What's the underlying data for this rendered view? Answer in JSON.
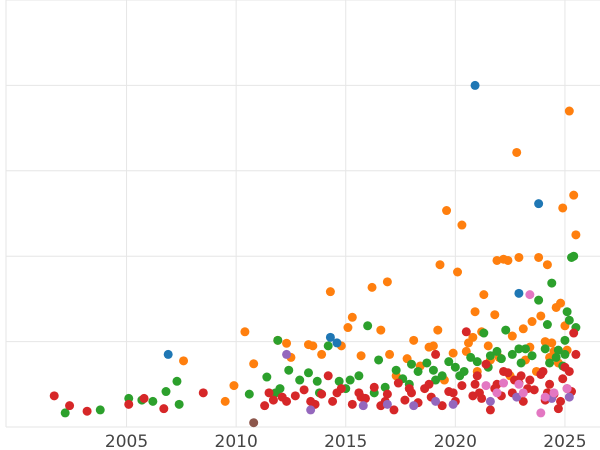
{
  "chart_data": {
    "type": "scatter",
    "title": "",
    "xlabel": "",
    "ylabel": "",
    "xlim": [
      1999.5,
      2026.6
    ],
    "ylim": [
      0,
      100
    ],
    "grid": true,
    "x_ticks": [
      2005,
      2010,
      2015,
      2020,
      2025
    ],
    "x_tick_labels": [
      "2005",
      "2010",
      "2015",
      "2020",
      "2025"
    ],
    "y_ticks": [
      0,
      20,
      40,
      60,
      80,
      100
    ],
    "series": [
      {
        "color": "#ff7f0e",
        "points": [
          [
            2007.6,
            15.5
          ],
          [
            2009.5,
            6.0
          ],
          [
            2009.9,
            9.7
          ],
          [
            2010.4,
            22.3
          ],
          [
            2010.8,
            14.8
          ],
          [
            2011.9,
            20.3
          ],
          [
            2012.3,
            19.6
          ],
          [
            2012.5,
            16.3
          ],
          [
            2013.3,
            19.3
          ],
          [
            2013.5,
            19.0
          ],
          [
            2013.9,
            17.0
          ],
          [
            2014.3,
            31.7
          ],
          [
            2014.8,
            19.0
          ],
          [
            2015.1,
            23.3
          ],
          [
            2015.3,
            25.7
          ],
          [
            2015.7,
            16.7
          ],
          [
            2016.2,
            32.7
          ],
          [
            2016.6,
            22.7
          ],
          [
            2016.9,
            34.0
          ],
          [
            2017.0,
            17.0
          ],
          [
            2017.8,
            16.0
          ],
          [
            2018.1,
            20.3
          ],
          [
            2018.8,
            18.7
          ],
          [
            2019.0,
            19.0
          ],
          [
            2019.2,
            22.7
          ],
          [
            2019.3,
            38.0
          ],
          [
            2019.6,
            50.7
          ],
          [
            2019.9,
            17.3
          ],
          [
            2020.1,
            36.3
          ],
          [
            2020.3,
            47.3
          ],
          [
            2020.5,
            17.7
          ],
          [
            2020.8,
            21.0
          ],
          [
            2020.9,
            27.0
          ],
          [
            2021.2,
            22.3
          ],
          [
            2021.3,
            31.0
          ],
          [
            2021.5,
            19.0
          ],
          [
            2021.8,
            26.3
          ],
          [
            2021.9,
            39.0
          ],
          [
            2022.2,
            39.3
          ],
          [
            2022.4,
            39.0
          ],
          [
            2022.6,
            21.3
          ],
          [
            2022.8,
            64.3
          ],
          [
            2022.9,
            39.7
          ],
          [
            2023.1,
            23.0
          ],
          [
            2023.4,
            18.7
          ],
          [
            2023.5,
            24.7
          ],
          [
            2023.8,
            39.7
          ],
          [
            2023.9,
            26.0
          ],
          [
            2024.1,
            20.0
          ],
          [
            2024.2,
            38.0
          ],
          [
            2024.4,
            19.7
          ],
          [
            2024.5,
            17.7
          ],
          [
            2024.6,
            28.0
          ],
          [
            2024.8,
            29.0
          ],
          [
            2024.9,
            51.3
          ],
          [
            2025.0,
            23.7
          ],
          [
            2025.2,
            74.0
          ],
          [
            2025.4,
            54.3
          ],
          [
            2025.5,
            45.0
          ],
          [
            2020.6,
            19.7
          ],
          [
            2021.6,
            15.7
          ],
          [
            2022.0,
            16.3
          ],
          [
            2023.2,
            15.7
          ],
          [
            2024.3,
            16.3
          ],
          [
            2018.4,
            14.3
          ],
          [
            2017.3,
            12.0
          ],
          [
            2019.5,
            11.0
          ],
          [
            2021.0,
            13.0
          ],
          [
            2022.5,
            12.0
          ],
          [
            2023.7,
            13.0
          ],
          [
            2025.1,
            18.0
          ],
          [
            2024.7,
            15.0
          ]
        ]
      },
      {
        "color": "#2ca02c",
        "points": [
          [
            2002.2,
            3.3
          ],
          [
            2003.8,
            4.0
          ],
          [
            2005.1,
            6.7
          ],
          [
            2005.7,
            6.3
          ],
          [
            2006.2,
            6.0
          ],
          [
            2006.8,
            8.3
          ],
          [
            2007.3,
            10.7
          ],
          [
            2007.4,
            5.3
          ],
          [
            2010.6,
            7.7
          ],
          [
            2011.4,
            11.7
          ],
          [
            2011.9,
            20.3
          ],
          [
            2011.8,
            8.0
          ],
          [
            2012.4,
            13.3
          ],
          [
            2012.9,
            11.0
          ],
          [
            2013.3,
            12.7
          ],
          [
            2013.7,
            10.7
          ],
          [
            2014.2,
            19.0
          ],
          [
            2014.7,
            10.7
          ],
          [
            2015.2,
            11.0
          ],
          [
            2015.6,
            12.0
          ],
          [
            2016.0,
            23.7
          ],
          [
            2016.5,
            15.7
          ],
          [
            2016.8,
            9.3
          ],
          [
            2017.3,
            13.3
          ],
          [
            2017.6,
            11.3
          ],
          [
            2018.0,
            14.7
          ],
          [
            2018.3,
            13.0
          ],
          [
            2018.7,
            15.0
          ],
          [
            2019.0,
            13.3
          ],
          [
            2019.4,
            12.0
          ],
          [
            2019.7,
            15.3
          ],
          [
            2020.0,
            14.0
          ],
          [
            2020.4,
            13.0
          ],
          [
            2020.7,
            16.3
          ],
          [
            2021.0,
            15.3
          ],
          [
            2021.3,
            22.0
          ],
          [
            2021.6,
            16.7
          ],
          [
            2021.9,
            17.7
          ],
          [
            2022.3,
            22.7
          ],
          [
            2022.6,
            17.0
          ],
          [
            2022.9,
            18.3
          ],
          [
            2023.2,
            18.3
          ],
          [
            2023.5,
            16.7
          ],
          [
            2023.8,
            29.7
          ],
          [
            2024.1,
            18.3
          ],
          [
            2024.2,
            24.0
          ],
          [
            2024.4,
            33.7
          ],
          [
            2024.6,
            16.3
          ],
          [
            2024.9,
            14.3
          ],
          [
            2025.1,
            27.0
          ],
          [
            2025.3,
            39.7
          ],
          [
            2025.4,
            40.0
          ],
          [
            2025.5,
            23.3
          ],
          [
            2025.2,
            25.0
          ],
          [
            2025.0,
            20.3
          ],
          [
            2024.7,
            18.0
          ],
          [
            2023.0,
            15.0
          ],
          [
            2021.5,
            14.0
          ],
          [
            2020.2,
            12.0
          ],
          [
            2019.1,
            11.0
          ],
          [
            2017.9,
            10.0
          ],
          [
            2016.3,
            8.0
          ],
          [
            2015.0,
            9.0
          ],
          [
            2013.8,
            8.0
          ],
          [
            2012.0,
            9.0
          ],
          [
            2025.0,
            17.0
          ],
          [
            2024.3,
            15.0
          ],
          [
            2022.1,
            16.0
          ]
        ]
      },
      {
        "color": "#d62728",
        "points": [
          [
            2001.7,
            7.3
          ],
          [
            2002.4,
            5.0
          ],
          [
            2003.2,
            3.7
          ],
          [
            2005.1,
            5.3
          ],
          [
            2005.8,
            6.7
          ],
          [
            2006.7,
            4.3
          ],
          [
            2008.5,
            8.0
          ],
          [
            2011.3,
            5.0
          ],
          [
            2011.7,
            6.3
          ],
          [
            2012.3,
            6.0
          ],
          [
            2012.7,
            7.3
          ],
          [
            2013.1,
            8.7
          ],
          [
            2013.6,
            5.3
          ],
          [
            2013.9,
            7.7
          ],
          [
            2014.2,
            12.0
          ],
          [
            2014.4,
            6.0
          ],
          [
            2014.8,
            9.0
          ],
          [
            2015.3,
            5.3
          ],
          [
            2015.6,
            8.0
          ],
          [
            2015.9,
            6.7
          ],
          [
            2016.3,
            9.3
          ],
          [
            2016.6,
            5.0
          ],
          [
            2016.9,
            7.7
          ],
          [
            2017.2,
            4.0
          ],
          [
            2017.4,
            10.3
          ],
          [
            2017.7,
            6.3
          ],
          [
            2018.0,
            8.0
          ],
          [
            2018.3,
            5.7
          ],
          [
            2018.6,
            9.0
          ],
          [
            2018.9,
            7.0
          ],
          [
            2019.1,
            17.0
          ],
          [
            2019.4,
            5.0
          ],
          [
            2019.7,
            8.3
          ],
          [
            2020.0,
            6.0
          ],
          [
            2020.3,
            9.7
          ],
          [
            2020.5,
            22.3
          ],
          [
            2020.8,
            7.3
          ],
          [
            2021.0,
            12.0
          ],
          [
            2021.2,
            6.7
          ],
          [
            2021.4,
            14.7
          ],
          [
            2021.6,
            4.0
          ],
          [
            2021.9,
            10.0
          ],
          [
            2022.1,
            7.3
          ],
          [
            2022.4,
            12.7
          ],
          [
            2022.6,
            8.0
          ],
          [
            2022.9,
            10.3
          ],
          [
            2023.1,
            6.0
          ],
          [
            2023.4,
            11.0
          ],
          [
            2023.6,
            8.7
          ],
          [
            2023.9,
            12.3
          ],
          [
            2024.1,
            6.3
          ],
          [
            2024.3,
            10.0
          ],
          [
            2024.5,
            7.7
          ],
          [
            2024.7,
            4.3
          ],
          [
            2024.9,
            11.3
          ],
          [
            2025.1,
            9.0
          ],
          [
            2025.3,
            8.3
          ],
          [
            2025.5,
            17.0
          ],
          [
            2025.4,
            22.0
          ],
          [
            2025.2,
            13.0
          ],
          [
            2024.8,
            6.0
          ],
          [
            2024.2,
            8.0
          ],
          [
            2023.3,
            9.0
          ],
          [
            2022.7,
            11.0
          ],
          [
            2021.8,
            9.0
          ],
          [
            2020.9,
            10.0
          ],
          [
            2019.9,
            8.0
          ],
          [
            2018.8,
            10.0
          ],
          [
            2017.9,
            9.0
          ],
          [
            2016.8,
            6.0
          ],
          [
            2015.7,
            7.0
          ],
          [
            2014.6,
            8.0
          ],
          [
            2013.4,
            6.0
          ],
          [
            2012.1,
            7.0
          ],
          [
            2011.5,
            8.0
          ],
          [
            2025.0,
            14.0
          ],
          [
            2024.0,
            13.0
          ],
          [
            2023.0,
            12.0
          ],
          [
            2022.2,
            13.0
          ],
          [
            2021.1,
            8.0
          ]
        ]
      },
      {
        "color": "#1f77b4",
        "points": [
          [
            2006.9,
            17.0
          ],
          [
            2014.3,
            21.0
          ],
          [
            2014.6,
            19.7
          ],
          [
            2020.9,
            80.0
          ],
          [
            2022.9,
            31.3
          ],
          [
            2023.8,
            52.3
          ]
        ]
      },
      {
        "color": "#9467bd",
        "points": [
          [
            2012.3,
            17.0
          ],
          [
            2013.4,
            4.0
          ],
          [
            2015.8,
            5.0
          ],
          [
            2016.9,
            5.3
          ],
          [
            2018.1,
            5.0
          ],
          [
            2019.1,
            6.0
          ],
          [
            2019.9,
            5.3
          ],
          [
            2021.6,
            6.0
          ],
          [
            2022.8,
            7.0
          ],
          [
            2024.4,
            6.7
          ],
          [
            2025.2,
            7.0
          ]
        ]
      },
      {
        "color": "#e377c2",
        "points": [
          [
            2021.4,
            9.7
          ],
          [
            2022.2,
            10.3
          ],
          [
            2022.9,
            10.0
          ],
          [
            2023.4,
            31.0
          ],
          [
            2023.9,
            3.3
          ],
          [
            2024.5,
            8.0
          ],
          [
            2025.1,
            9.0
          ],
          [
            2021.9,
            8.0
          ],
          [
            2023.1,
            8.0
          ],
          [
            2024.1,
            7.0
          ]
        ]
      },
      {
        "color": "#8c564b",
        "points": [
          [
            2010.8,
            1.0
          ]
        ]
      }
    ]
  }
}
